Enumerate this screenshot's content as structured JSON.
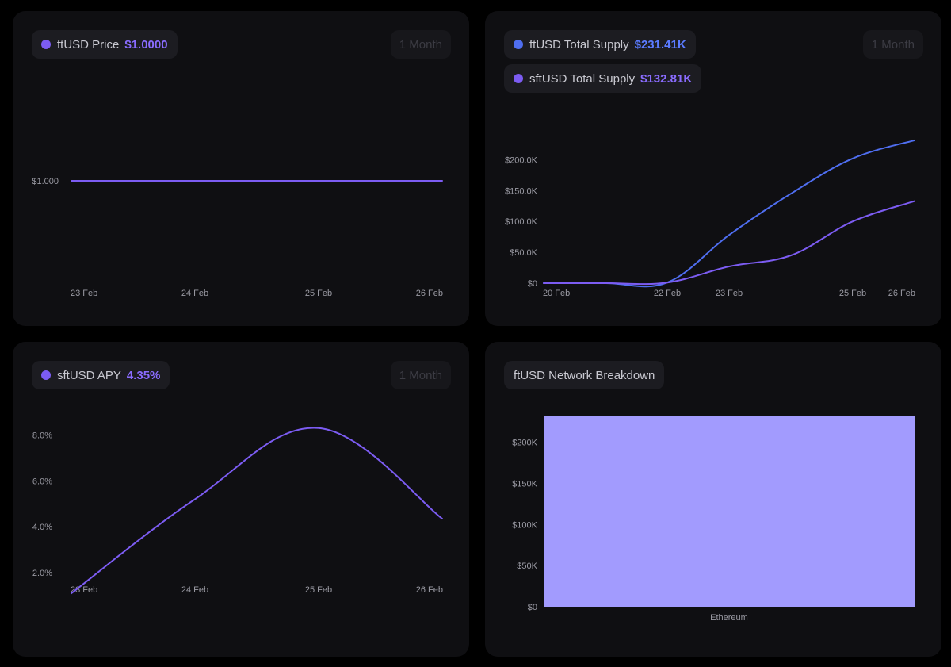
{
  "colors": {
    "accent_purple": "#7c5cf2",
    "accent_blue": "#4f6ef0",
    "bar_fill": "#a29bfe",
    "axis_text": "#9a9aa3",
    "card_bg": "#0f0f12",
    "pill_bg": "#1c1c21"
  },
  "cards": {
    "price": {
      "legend_label": "ftUSD Price",
      "legend_value": "$1.0000",
      "range_label": "1 Month"
    },
    "supply": {
      "legend1_label": "ftUSD Total Supply",
      "legend1_value": "$231.41K",
      "legend2_label": "sftUSD Total Supply",
      "legend2_value": "$132.81K",
      "range_label": "1 Month"
    },
    "apy": {
      "legend_label": "sftUSD APY",
      "legend_value": "4.35%",
      "range_label": "1 Month"
    },
    "network": {
      "title": "ftUSD Network Breakdown"
    }
  },
  "chart_data": [
    {
      "id": "price",
      "type": "line",
      "title": "ftUSD Price",
      "x_domain": [
        0,
        3
      ],
      "ticks_x": [
        {
          "x": 0,
          "label": "23 Feb"
        },
        {
          "x": 1,
          "label": "24 Feb"
        },
        {
          "x": 2,
          "label": "25 Feb"
        },
        {
          "x": 3,
          "label": "26 Feb"
        }
      ],
      "ticks_y": [
        {
          "y": 1.0,
          "label": "$1.000"
        }
      ],
      "ylim": [
        0.99,
        1.01
      ],
      "series": [
        {
          "name": "ftUSD Price",
          "color": "#7c5cf2",
          "points": [
            [
              0,
              1.0
            ],
            [
              1,
              1.0
            ],
            [
              2,
              1.0
            ],
            [
              3,
              1.0
            ]
          ]
        }
      ]
    },
    {
      "id": "supply",
      "type": "line",
      "title": "Total Supply",
      "x_domain": [
        0,
        6
      ],
      "ticks_x": [
        {
          "x": 0,
          "label": "20 Feb"
        },
        {
          "x": 2,
          "label": "22 Feb"
        },
        {
          "x": 3,
          "label": "23 Feb"
        },
        {
          "x": 5,
          "label": "25 Feb"
        },
        {
          "x": 6,
          "label": "26 Feb"
        }
      ],
      "ticks_y": [
        {
          "y": 0,
          "label": "$0"
        },
        {
          "y": 50000,
          "label": "$50.0K"
        },
        {
          "y": 100000,
          "label": "$100.0K"
        },
        {
          "y": 150000,
          "label": "$150.0K"
        },
        {
          "y": 200000,
          "label": "$200.0K"
        }
      ],
      "ylim": [
        0,
        230000
      ],
      "series": [
        {
          "name": "ftUSD Total Supply",
          "color": "#4f6ef0",
          "points": [
            [
              0,
              0
            ],
            [
              1,
              0
            ],
            [
              2,
              1000
            ],
            [
              3,
              78000
            ],
            [
              4,
              145000
            ],
            [
              5,
              202000
            ],
            [
              6,
              231410
            ]
          ]
        },
        {
          "name": "sftUSD Total Supply",
          "color": "#7c5cf2",
          "points": [
            [
              0,
              0
            ],
            [
              1,
              0
            ],
            [
              2,
              1000
            ],
            [
              3,
              27000
            ],
            [
              4,
              45000
            ],
            [
              5,
              100000
            ],
            [
              6,
              132810
            ]
          ]
        }
      ]
    },
    {
      "id": "apy",
      "type": "line",
      "title": "sftUSD APY",
      "x_domain": [
        0,
        3
      ],
      "ticks_x": [
        {
          "x": 0,
          "label": "23 Feb"
        },
        {
          "x": 1,
          "label": "24 Feb"
        },
        {
          "x": 2,
          "label": "25 Feb"
        },
        {
          "x": 3,
          "label": "26 Feb"
        }
      ],
      "ticks_y": [
        {
          "y": 2,
          "label": "2.0%"
        },
        {
          "y": 4,
          "label": "4.0%"
        },
        {
          "y": 6,
          "label": "6.0%"
        },
        {
          "y": 8,
          "label": "8.0%"
        }
      ],
      "ylim": [
        1.0,
        8.6
      ],
      "series": [
        {
          "name": "sftUSD APY",
          "color": "#7c5cf2",
          "points": [
            [
              0,
              1.1
            ],
            [
              1,
              5.2
            ],
            [
              2,
              8.3
            ],
            [
              3,
              4.35
            ]
          ]
        }
      ]
    },
    {
      "id": "network",
      "type": "bar",
      "title": "ftUSD Network Breakdown",
      "categories": [
        "Ethereum"
      ],
      "values": [
        231410
      ],
      "ticks_y": [
        {
          "y": 0,
          "label": "$0"
        },
        {
          "y": 50000,
          "label": "$50K"
        },
        {
          "y": 100000,
          "label": "$100K"
        },
        {
          "y": 150000,
          "label": "$150K"
        },
        {
          "y": 200000,
          "label": "$200K"
        }
      ],
      "ylim": [
        0,
        231410
      ]
    }
  ]
}
